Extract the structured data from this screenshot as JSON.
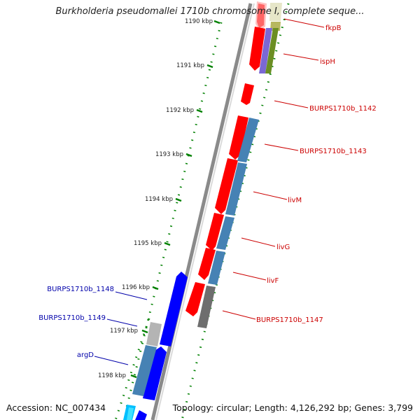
{
  "title": "Burkholderia pseudomallei 1710b chromosome I, complete seque...",
  "footer": {
    "accession": "Accession: NC_007434",
    "topology": "Topology: circular; Length: 4,126,292 bp; Genes: 3,799"
  },
  "colors": {
    "forward_gene": "#ff0000",
    "reverse_gene": "#0000ff",
    "blue_cds": "#4682b4",
    "gray_cds": "#777777",
    "tick": "#008000",
    "red_label": "#cc0000",
    "blue_label": "#0000aa",
    "backbone": "#8a8a8a"
  },
  "ticks": [
    {
      "label": "1190 kbp"
    },
    {
      "label": "1191 kbp"
    },
    {
      "label": "1192 kbp"
    },
    {
      "label": "1193 kbp"
    },
    {
      "label": "1194 kbp"
    },
    {
      "label": "1195 kbp"
    },
    {
      "label": "1196 kbp"
    },
    {
      "label": "1197 kbp"
    },
    {
      "label": "1198 kbp"
    }
  ],
  "gene_labels_forward": [
    {
      "name": "fkpB"
    },
    {
      "name": "ispH"
    },
    {
      "name": "BURPS1710b_1142"
    },
    {
      "name": "BURPS1710b_1143"
    },
    {
      "name": "livM"
    },
    {
      "name": "livG"
    },
    {
      "name": "livF"
    },
    {
      "name": "BURPS1710b_1147"
    }
  ],
  "gene_labels_reverse": [
    {
      "name": "BURPS1710b_1148"
    },
    {
      "name": "BURPS1710b_1149"
    },
    {
      "name": "argD"
    }
  ]
}
